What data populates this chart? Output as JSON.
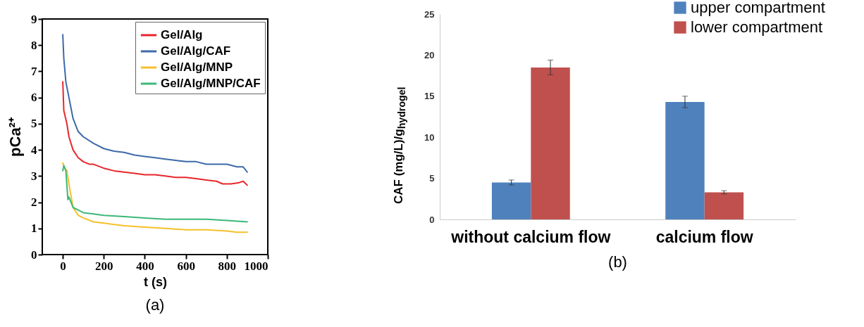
{
  "chart_data": [
    {
      "type": "line",
      "xlabel": "t (s)",
      "ylabel": "pCa²⁺",
      "xlim": [
        -100,
        1000
      ],
      "xticks": [
        0,
        200,
        400,
        600,
        800,
        {
          "value": 1000,
          "label": "1000"
        }
      ],
      "ylim": [
        0,
        9
      ],
      "yticks": [
        0,
        1,
        2,
        3,
        4,
        5,
        6,
        7,
        8,
        9
      ],
      "legend": "top right",
      "grid": false,
      "annotations": [
        "(a)"
      ],
      "series": [
        {
          "name": "Gel/Alg",
          "color": "#e8262a",
          "x": [
            0,
            5,
            20,
            30,
            50,
            75,
            100,
            130,
            150,
            200,
            250,
            300,
            350,
            400,
            450,
            500,
            550,
            600,
            650,
            700,
            750,
            780,
            820,
            860,
            880,
            900
          ],
          "values": [
            6.6,
            5.5,
            5.0,
            4.5,
            4.0,
            3.7,
            3.55,
            3.45,
            3.45,
            3.3,
            3.2,
            3.15,
            3.1,
            3.05,
            3.05,
            3.0,
            2.95,
            2.95,
            2.9,
            2.85,
            2.8,
            2.7,
            2.7,
            2.75,
            2.8,
            2.65
          ]
        },
        {
          "name": "Gel/Alg/CAF",
          "color": "#3d6aa8",
          "x": [
            0,
            5,
            15,
            30,
            50,
            75,
            100,
            150,
            200,
            250,
            300,
            350,
            400,
            450,
            500,
            550,
            600,
            650,
            700,
            750,
            800,
            850,
            880,
            900
          ],
          "values": [
            8.4,
            7.5,
            6.6,
            6.0,
            5.2,
            4.7,
            4.5,
            4.25,
            4.05,
            3.95,
            3.9,
            3.8,
            3.75,
            3.7,
            3.65,
            3.6,
            3.55,
            3.55,
            3.45,
            3.45,
            3.45,
            3.35,
            3.35,
            3.15
          ]
        },
        {
          "name": "Gel/Alg/MNP",
          "color": "#f5c02a",
          "x": [
            0,
            10,
            20,
            30,
            50,
            75,
            100,
            150,
            200,
            250,
            300,
            400,
            500,
            600,
            700,
            800,
            850,
            900
          ],
          "values": [
            3.5,
            3.3,
            3.2,
            2.7,
            1.8,
            1.5,
            1.4,
            1.25,
            1.2,
            1.15,
            1.1,
            1.05,
            1.0,
            0.95,
            0.95,
            0.9,
            0.85,
            0.85
          ]
        },
        {
          "name": "Gel/Alg/MNP/CAF",
          "color": "#3cb878",
          "x": [
            0,
            5,
            15,
            25,
            30,
            50,
            75,
            100,
            150,
            200,
            300,
            400,
            500,
            600,
            700,
            800,
            900
          ],
          "values": [
            3.2,
            3.4,
            3.2,
            2.1,
            2.2,
            1.8,
            1.7,
            1.6,
            1.55,
            1.5,
            1.45,
            1.4,
            1.35,
            1.35,
            1.35,
            1.3,
            1.25
          ]
        }
      ]
    },
    {
      "type": "bar",
      "ylabel": "CAF (mg/L)/g$_{hydrogel}$",
      "categories": [
        "without calcium flow",
        "calcium flow"
      ],
      "ylim": [
        0,
        25
      ],
      "yticks": [
        0,
        5,
        10,
        15,
        20,
        25
      ],
      "legend": "top right",
      "grid": false,
      "annotations": [
        "(b)"
      ],
      "series": [
        {
          "name": "upper compartment",
          "color": "#4f81bd",
          "values": [
            4.5,
            14.3
          ],
          "errors": [
            0.3,
            0.7
          ]
        },
        {
          "name": "lower compartment",
          "color": "#c0504d",
          "values": [
            18.5,
            3.3
          ],
          "errors": [
            0.9,
            0.2
          ]
        }
      ]
    }
  ]
}
